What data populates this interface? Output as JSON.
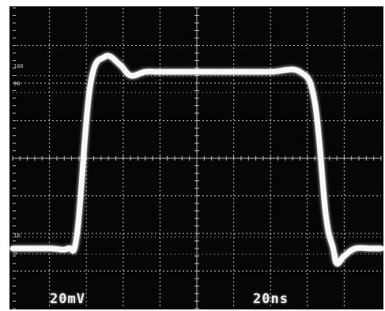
{
  "scope": {
    "volts_per_div": "20mV",
    "time_per_div": "20ns",
    "graticule": {
      "divisions_x": 10,
      "divisions_y": 8,
      "minor_ticks_per_div": 5
    },
    "markers": [
      "100",
      "90",
      "10",
      "0"
    ],
    "colors": {
      "screen": "#060606",
      "grid": "#bdbdbd",
      "trace": "#f8f8f8",
      "bezel": "#ffffff"
    }
  },
  "chart_data": {
    "type": "line",
    "xlim": [
      0,
      200
    ],
    "ylim": [
      -80,
      80
    ],
    "x": [
      0,
      20,
      30,
      35,
      42,
      50,
      58,
      64,
      72,
      80,
      100,
      120,
      140,
      156,
      164,
      170,
      174,
      176,
      180,
      186,
      194,
      200
    ],
    "y": [
      -48,
      -48,
      -48,
      -40,
      38,
      54,
      50,
      44,
      46,
      46,
      46,
      46,
      46,
      46,
      30,
      -30,
      -48,
      -56,
      -52,
      -48,
      -48,
      -48
    ]
  }
}
